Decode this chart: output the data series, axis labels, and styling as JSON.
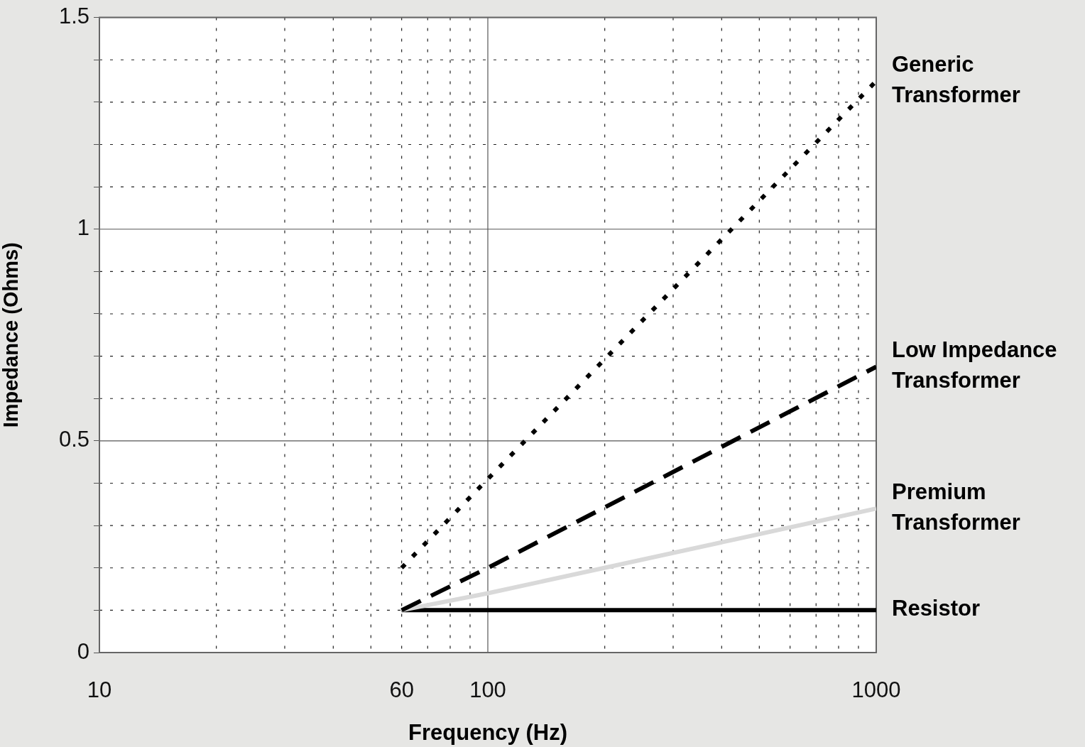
{
  "chart_data": {
    "type": "line",
    "xlabel": "Frequency (Hz)",
    "ylabel": "Impedance (Ohms)",
    "log": "x",
    "xlim": [
      10,
      1000
    ],
    "ylim": [
      0,
      1.5
    ],
    "xticks": [
      10,
      {
        "value": 20,
        "label": null
      },
      {
        "value": 30,
        "label": null
      },
      {
        "value": 40,
        "label": null
      },
      {
        "value": 50,
        "label": null
      },
      60,
      {
        "value": 70,
        "label": null
      },
      {
        "value": 80,
        "label": null
      },
      {
        "value": 90,
        "label": null
      },
      100,
      {
        "value": 200,
        "label": null
      },
      {
        "value": 300,
        "label": null
      },
      {
        "value": 400,
        "label": null
      },
      {
        "value": 500,
        "label": null
      },
      {
        "value": 600,
        "label": null
      },
      {
        "value": 700,
        "label": null
      },
      {
        "value": 800,
        "label": null
      },
      {
        "value": 900,
        "label": null
      },
      1000
    ],
    "yticks": [
      0,
      {
        "value": 0.1,
        "label": null
      },
      {
        "value": 0.2,
        "label": null
      },
      {
        "value": 0.3,
        "label": null
      },
      {
        "value": 0.4,
        "label": null
      },
      0.5,
      {
        "value": 0.6,
        "label": null
      },
      {
        "value": 0.7,
        "label": null
      },
      {
        "value": 0.8,
        "label": null
      },
      {
        "value": 0.9,
        "label": null
      },
      1,
      {
        "value": 1.1,
        "label": null
      },
      {
        "value": 1.2,
        "label": null
      },
      {
        "value": 1.3,
        "label": null
      },
      {
        "value": 1.4,
        "label": null
      },
      1.5
    ],
    "grid": true,
    "legend": false,
    "marker": "none",
    "series": [
      {
        "name": "Generic Transformer",
        "color": "#000000",
        "line_style": "dotted",
        "x": [
          60,
          100,
          1000
        ],
        "values": [
          0.2,
          0.41,
          1.35
        ]
      },
      {
        "name": "Low Impedance Transformer",
        "color": "#000000",
        "line_style": "dashed",
        "x": [
          60,
          100,
          1000
        ],
        "values": [
          0.1,
          0.2,
          0.675
        ]
      },
      {
        "name": "Premium Transformer",
        "color": "#d9d9d9",
        "line_style": "solid",
        "x": [
          60,
          100,
          1000
        ],
        "values": [
          0.1,
          0.14,
          0.34
        ]
      },
      {
        "name": "Resistor",
        "color": "#000000",
        "line_style": "solid",
        "x": [
          60,
          100,
          1000
        ],
        "values": [
          0.1,
          0.1,
          0.1
        ]
      }
    ]
  }
}
